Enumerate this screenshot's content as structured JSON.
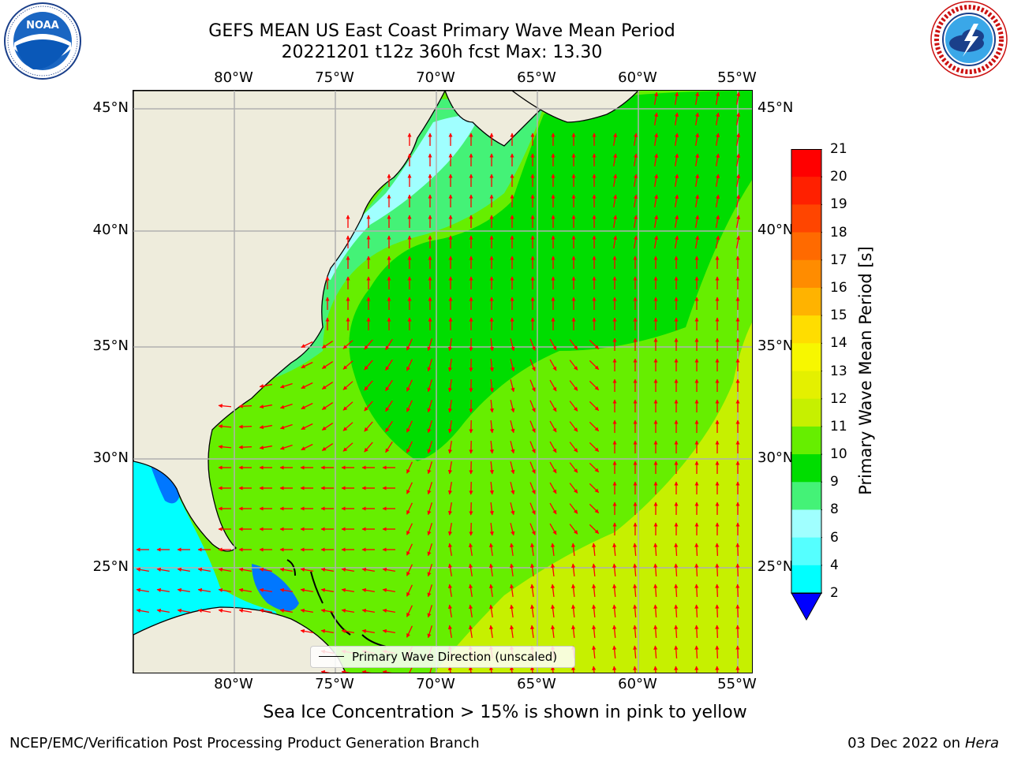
{
  "title_line1": "GEFS MEAN US East Coast Primary Wave Mean Period",
  "title_line2": "20221201 t12z 360h fcst   Max: 13.30",
  "lon_labels": [
    "80°W",
    "75°W",
    "70°W",
    "65°W",
    "60°W",
    "55°W"
  ],
  "lat_labels": [
    "45°N",
    "40°N",
    "35°N",
    "30°N",
    "25°N"
  ],
  "legend_text": "Primary Wave Direction (unscaled)",
  "colorbar": {
    "label": "Primary Wave Mean Period [s]",
    "ticks": [
      "21",
      "20",
      "19",
      "18",
      "17",
      "16",
      "15",
      "14",
      "13",
      "12",
      "11",
      "10",
      "9",
      "8",
      "6",
      "4",
      "2"
    ],
    "colors": [
      "#ff0000",
      "#ff2000",
      "#ff4500",
      "#ff6a00",
      "#ff8c00",
      "#ffb300",
      "#ffdd00",
      "#f7f700",
      "#e4f000",
      "#c6f000",
      "#66ee00",
      "#00dd00",
      "#44f277",
      "#a0ffff",
      "#55ffff",
      "#00ffff",
      "#0077ff"
    ],
    "under_color": "#0000ff"
  },
  "sea_ice_note": "Sea Ice Concentration > 15% is shown in pink to yellow",
  "footer_left": "NCEP/EMC/Verification Post Processing Product Generation Branch",
  "footer_date": "03 Dec 2022 on",
  "footer_host": "Hera",
  "colors": {
    "land": "#eeecdc",
    "arrow": "#ff0000",
    "gridline": "#b0b0b0"
  },
  "icons": {
    "left_logo": "noaa-logo",
    "right_logo": "nws-logo"
  }
}
